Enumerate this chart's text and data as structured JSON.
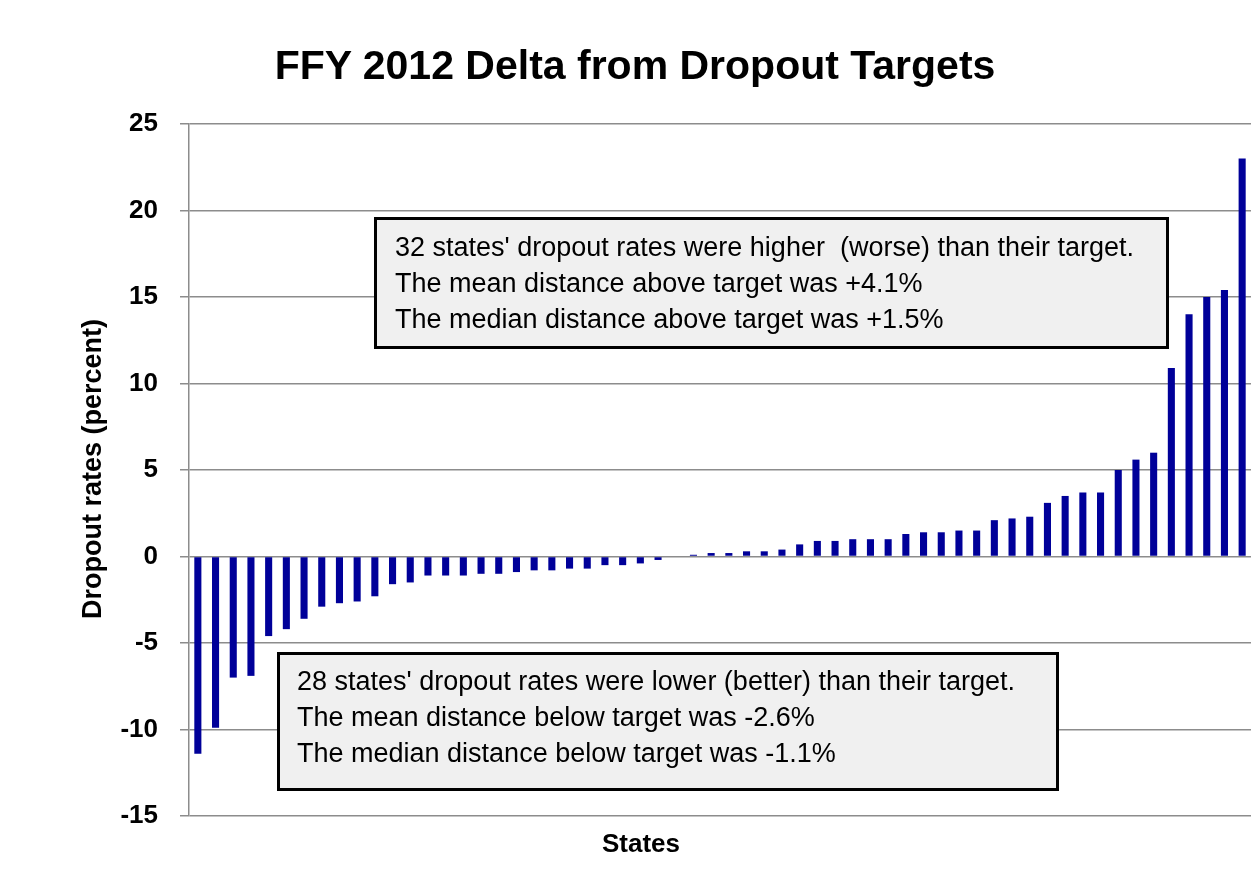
{
  "chart_data": {
    "type": "bar",
    "title": "FFY 2012 Delta from Dropout Targets",
    "xlabel": "States",
    "ylabel": "Dropout rates (percent)",
    "annotations": [
      "32 states' dropout rates were higher  (worse) than their target.\nThe mean distance above target was +4.1%\nThe median distance above target was +1.5%",
      "28 states' dropout rates were lower (better) than their target.\nThe mean distance below target was -2.6%\nThe median distance below target was -1.1%"
    ],
    "categories": [
      null,
      null,
      null,
      null,
      null,
      null,
      null,
      null,
      null,
      null,
      null,
      null,
      null,
      null,
      null,
      null,
      null,
      null,
      null,
      null,
      null,
      null,
      null,
      null,
      null,
      null,
      null,
      null,
      null,
      null,
      null,
      null,
      null,
      null,
      null,
      null,
      null,
      null,
      null,
      null,
      null,
      null,
      null,
      null,
      null,
      null,
      null,
      null,
      null,
      null,
      null,
      null,
      null,
      null,
      null,
      null,
      null,
      null,
      null,
      null
    ],
    "values": [
      -11.4,
      -9.9,
      -7.0,
      -6.9,
      -4.6,
      -4.2,
      -3.6,
      -2.9,
      -2.7,
      -2.6,
      -2.3,
      -1.6,
      -1.5,
      -1.1,
      -1.1,
      -1.1,
      -1.0,
      -1.0,
      -0.9,
      -0.8,
      -0.8,
      -0.7,
      -0.7,
      -0.5,
      -0.5,
      -0.4,
      -0.2,
      0,
      0.1,
      0.2,
      0.2,
      0.3,
      0.3,
      0.4,
      0.7,
      0.9,
      0.9,
      1.0,
      1.0,
      1.0,
      1.3,
      1.4,
      1.4,
      1.5,
      1.5,
      2.1,
      2.2,
      2.3,
      3.1,
      3.5,
      3.7,
      3.7,
      5.0,
      5.6,
      6.0,
      10.9,
      14.0,
      15.0,
      15.4,
      23.0
    ],
    "color": "#000099",
    "ylim": [
      -15,
      25
    ],
    "yticks": [
      -15,
      -10,
      -5,
      0,
      5,
      10,
      15,
      20,
      25
    ],
    "grid": "y"
  }
}
